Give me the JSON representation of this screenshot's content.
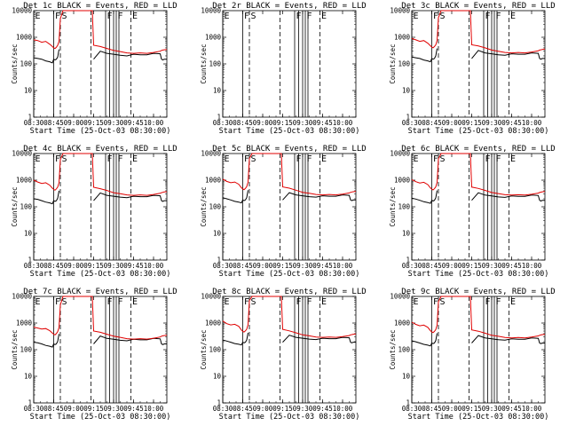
{
  "colors": {
    "events": "#000000",
    "lld": "#e00000",
    "axes": "#000000",
    "background": "#ffffff"
  },
  "chart_data": {
    "type": "line",
    "panel_grid": "3x3",
    "shared": {
      "xlabel": "Start Time (25-Oct-03 08:30:00)",
      "ylabel": "Counts/sec",
      "yscale": "log",
      "ylim": [
        1,
        10000
      ],
      "ytick_labels": [
        "1",
        "10",
        "100",
        "1000",
        "10000"
      ],
      "xlim_minutes": [
        0,
        100
      ],
      "xtick_minutes": [
        0,
        15,
        30,
        45,
        60,
        75,
        90
      ],
      "xtick_labels": [
        "08:30",
        "08:45",
        "09:00",
        "09:15",
        "09:30",
        "09:45",
        "10:00"
      ],
      "flag_marks": [
        {
          "minute": 0,
          "label": "E",
          "style": "solid"
        },
        {
          "minute": 15,
          "label": "F",
          "style": "solid"
        },
        {
          "minute": 20,
          "label": "S",
          "style": "dashed"
        },
        {
          "minute": 43,
          "label": "",
          "style": "dashed"
        },
        {
          "minute": 54,
          "label": "F",
          "style": "solid"
        },
        {
          "minute": 57,
          "label": "",
          "style": "solid"
        },
        {
          "minute": 60,
          "label": "",
          "style": "solid"
        },
        {
          "minute": 62,
          "label": "F",
          "style": "solid"
        },
        {
          "minute": 64,
          "label": "",
          "style": "solid"
        },
        {
          "minute": 73,
          "label": "E",
          "style": "dashed"
        }
      ],
      "x": [
        0,
        3,
        6,
        9,
        12,
        14,
        15,
        16,
        17,
        18,
        19,
        20,
        22,
        25,
        30,
        35,
        40,
        42,
        44,
        45,
        50,
        55,
        60,
        65,
        70,
        75,
        80,
        85,
        90,
        95,
        96,
        97,
        98,
        100
      ]
    },
    "panels": [
      {
        "title": "Det 1c BLACK = Events, RED = LLD",
        "series": [
          {
            "name": "Events",
            "color": "#000000",
            "values": [
              170,
              160,
              150,
              130,
              120,
              110,
              150,
              140,
              150,
              180,
              350,
              null,
              null,
              null,
              null,
              null,
              null,
              null,
              null,
              150,
              300,
              250,
              230,
              210,
              200,
              230,
              220,
              220,
              250,
              240,
              150,
              140,
              150,
              150
            ]
          },
          {
            "name": "LLD",
            "color": "#e00000",
            "values": [
              800,
              750,
              650,
              700,
              550,
              450,
              400,
              380,
              420,
              500,
              700,
              5000,
              10000,
              10000,
              10000,
              10000,
              10000,
              10000,
              10000,
              500,
              450,
              380,
              320,
              290,
              260,
              250,
              260,
              250,
              270,
              300,
              320,
              330,
              340,
              350
            ]
          }
        ]
      },
      {
        "title": "Det 2r BLACK = Events, RED = LLD",
        "series": [
          {
            "name": "Events",
            "color": "#000000",
            "values": [
              null,
              null,
              null,
              null,
              null,
              null,
              null,
              null,
              null,
              null,
              null,
              null,
              null,
              null,
              null,
              null,
              null,
              null,
              null,
              null,
              null,
              null,
              null,
              null,
              null,
              null,
              null,
              null,
              null,
              null,
              null,
              null,
              null,
              null
            ]
          },
          {
            "name": "LLD",
            "color": "#e00000",
            "values": [
              null,
              null,
              null,
              null,
              null,
              null,
              null,
              null,
              null,
              null,
              null,
              null,
              null,
              null,
              null,
              null,
              null,
              null,
              null,
              null,
              null,
              null,
              null,
              null,
              null,
              null,
              null,
              null,
              null,
              null,
              null,
              null,
              null,
              null
            ]
          }
        ]
      },
      {
        "title": "Det 3c BLACK = Events, RED = LLD",
        "series": [
          {
            "name": "Events",
            "color": "#000000",
            "values": [
              180,
              170,
              160,
              140,
              130,
              120,
              160,
              150,
              160,
              200,
              380,
              null,
              null,
              null,
              null,
              null,
              null,
              null,
              null,
              160,
              320,
              260,
              240,
              220,
              210,
              240,
              230,
              230,
              260,
              250,
              160,
              150,
              160,
              160
            ]
          },
          {
            "name": "LLD",
            "color": "#e00000",
            "values": [
              900,
              800,
              700,
              750,
              600,
              480,
              430,
              400,
              450,
              520,
              750,
              5500,
              10000,
              10000,
              10000,
              10000,
              10000,
              10000,
              10000,
              520,
              470,
              400,
              330,
              300,
              270,
              260,
              270,
              260,
              280,
              310,
              330,
              340,
              350,
              360
            ]
          }
        ]
      },
      {
        "title": "Det 4c BLACK = Events, RED = LLD",
        "series": [
          {
            "name": "Events",
            "color": "#000000",
            "values": [
              200,
              190,
              170,
              150,
              140,
              130,
              170,
              160,
              170,
              210,
              400,
              null,
              null,
              null,
              null,
              null,
              null,
              null,
              null,
              170,
              330,
              270,
              250,
              230,
              220,
              250,
              240,
              240,
              270,
              260,
              170,
              160,
              170,
              170
            ]
          },
          {
            "name": "LLD",
            "color": "#e00000",
            "values": [
              1000,
              850,
              750,
              800,
              650,
              500,
              450,
              420,
              470,
              550,
              800,
              6000,
              10000,
              10000,
              10000,
              10000,
              10000,
              10000,
              10000,
              540,
              480,
              410,
              340,
              310,
              280,
              270,
              280,
              270,
              290,
              320,
              340,
              350,
              360,
              370
            ]
          }
        ]
      },
      {
        "title": "Det 5c BLACK = Events, RED = LLD",
        "series": [
          {
            "name": "Events",
            "color": "#000000",
            "values": [
              220,
              200,
              180,
              160,
              150,
              140,
              180,
              170,
              180,
              220,
              420,
              null,
              null,
              null,
              null,
              null,
              null,
              null,
              null,
              180,
              340,
              280,
              260,
              240,
              230,
              260,
              250,
              250,
              280,
              270,
              180,
              170,
              180,
              180
            ]
          },
          {
            "name": "LLD",
            "color": "#e00000",
            "values": [
              1100,
              900,
              800,
              850,
              700,
              520,
              470,
              440,
              490,
              570,
              850,
              6500,
              10000,
              10000,
              10000,
              10000,
              10000,
              10000,
              10000,
              560,
              500,
              420,
              350,
              320,
              290,
              280,
              290,
              280,
              300,
              330,
              350,
              360,
              370,
              380
            ]
          }
        ]
      },
      {
        "title": "Det 6c BLACK = Events, RED = LLD",
        "series": [
          {
            "name": "Events",
            "color": "#000000",
            "values": [
              210,
              195,
              175,
              155,
              145,
              135,
              175,
              165,
              175,
              215,
              410,
              null,
              null,
              null,
              null,
              null,
              null,
              null,
              null,
              175,
              335,
              275,
              255,
              235,
              225,
              255,
              245,
              245,
              275,
              265,
              175,
              165,
              175,
              175
            ]
          },
          {
            "name": "LLD",
            "color": "#e00000",
            "values": [
              1050,
              880,
              780,
              830,
              680,
              510,
              460,
              430,
              480,
              560,
              830,
              6200,
              10000,
              10000,
              10000,
              10000,
              10000,
              10000,
              10000,
              550,
              490,
              415,
              345,
              315,
              285,
              275,
              285,
              275,
              295,
              325,
              345,
              355,
              365,
              375
            ]
          }
        ]
      },
      {
        "title": "Det 7c BLACK = Events, RED = LLD",
        "series": [
          {
            "name": "Events",
            "color": "#000000",
            "values": [
              190,
              180,
              165,
              145,
              135,
              125,
              165,
              155,
              165,
              205,
              390,
              null,
              null,
              null,
              null,
              null,
              null,
              null,
              null,
              165,
              325,
              265,
              245,
              225,
              215,
              245,
              235,
              235,
              265,
              255,
              165,
              155,
              165,
              165
            ]
          },
          {
            "name": "LLD",
            "color": "#e00000",
            "values": [
              700,
              650,
              600,
              620,
              520,
              420,
              380,
              360,
              400,
              480,
              680,
              4800,
              10000,
              10000,
              10000,
              10000,
              10000,
              10000,
              10000,
              500,
              450,
              380,
              320,
              290,
              260,
              250,
              260,
              250,
              270,
              300,
              320,
              330,
              340,
              350
            ]
          }
        ]
      },
      {
        "title": "Det 8c BLACK = Events, RED = LLD",
        "series": [
          {
            "name": "Events",
            "color": "#000000",
            "values": [
              230,
              210,
              190,
              170,
              160,
              150,
              190,
              180,
              190,
              230,
              430,
              null,
              null,
              null,
              null,
              null,
              null,
              null,
              null,
              190,
              350,
              290,
              270,
              250,
              240,
              270,
              260,
              260,
              290,
              280,
              190,
              180,
              190,
              190
            ]
          },
          {
            "name": "LLD",
            "color": "#e00000",
            "values": [
              1200,
              950,
              850,
              900,
              750,
              550,
              490,
              460,
              510,
              590,
              880,
              7000,
              10000,
              10000,
              10000,
              10000,
              10000,
              10000,
              10000,
              580,
              510,
              430,
              360,
              330,
              300,
              290,
              300,
              290,
              310,
              340,
              360,
              370,
              380,
              390
            ]
          }
        ]
      },
      {
        "title": "Det 9c BLACK = Events, RED = LLD",
        "series": [
          {
            "name": "Events",
            "color": "#000000",
            "values": [
              215,
              198,
              178,
              158,
              148,
              138,
              178,
              168,
              178,
              218,
              415,
              null,
              null,
              null,
              null,
              null,
              null,
              null,
              null,
              178,
              338,
              278,
              258,
              238,
              228,
              258,
              248,
              248,
              278,
              268,
              178,
              168,
              178,
              178
            ]
          },
          {
            "name": "LLD",
            "color": "#e00000",
            "values": [
              1080,
              890,
              790,
              840,
              690,
              515,
              465,
              435,
              485,
              565,
              840,
              6300,
              10000,
              10000,
              10000,
              10000,
              10000,
              10000,
              10000,
              555,
              495,
              418,
              348,
              318,
              288,
              278,
              288,
              278,
              298,
              328,
              348,
              358,
              368,
              378
            ]
          }
        ]
      }
    ]
  }
}
